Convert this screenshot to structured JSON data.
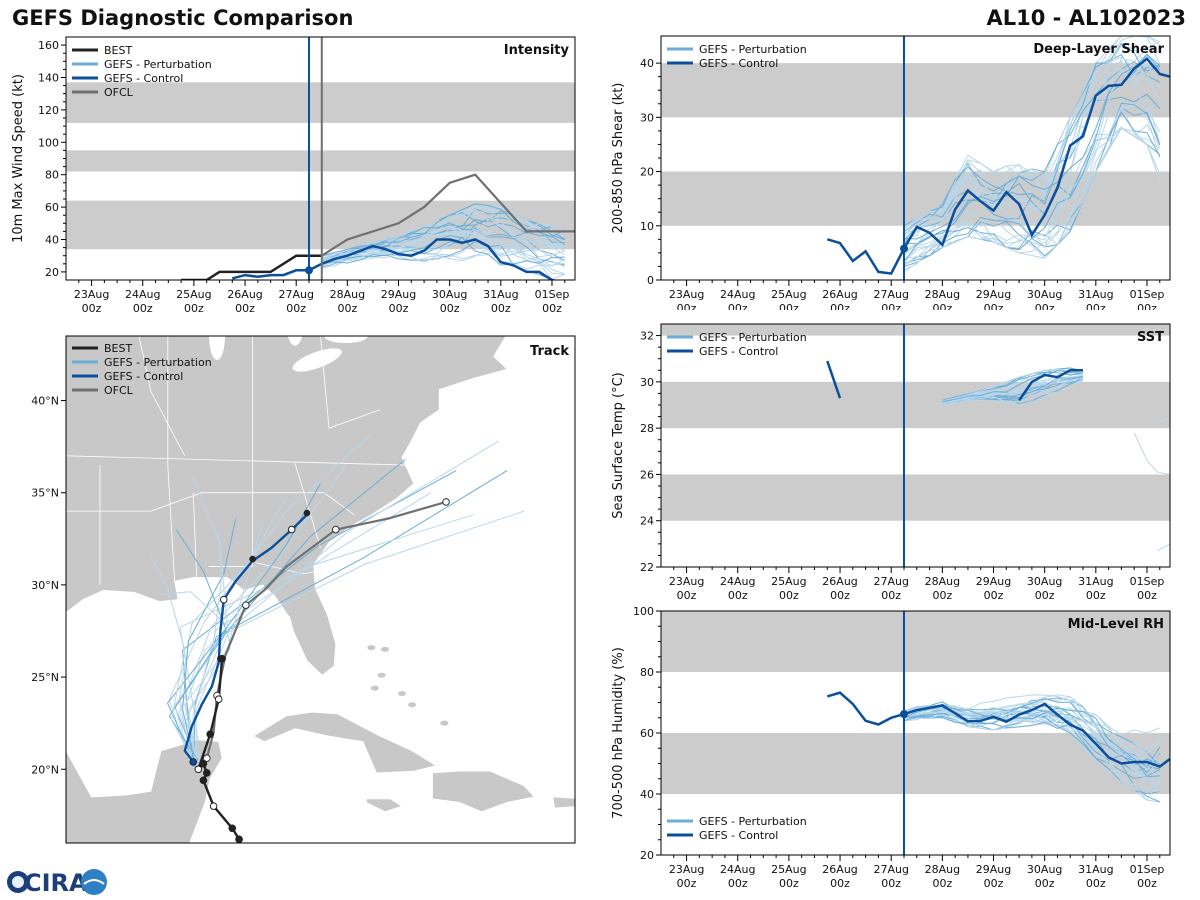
{
  "header": {
    "title": "GEFS Diagnostic Comparison",
    "storm": "AL10 - AL102023"
  },
  "logo_text": "CIRA",
  "colors": {
    "best": "#222222",
    "perturbation": "#6aaed6",
    "perturbation_faint": "#b9d7ec",
    "control": "#0b4f9c",
    "ofcl": "#707070",
    "band": "#cccccc",
    "land": "#c8c8c8",
    "init_line": "#0b4f9c"
  },
  "time_axis": {
    "days": [
      0,
      1,
      2,
      3,
      4,
      5,
      6,
      7,
      8,
      9
    ],
    "labels": [
      "23Aug",
      "24Aug",
      "25Aug",
      "26Aug",
      "27Aug",
      "28Aug",
      "29Aug",
      "30Aug",
      "31Aug",
      "01Sep"
    ],
    "sublabel": "00z",
    "xlim": [
      -0.5,
      9.45
    ],
    "init_day": 4.25,
    "ofcl_init_day": 4.5
  },
  "chart_data": [
    {
      "id": "intensity",
      "type": "line",
      "title": "Intensity",
      "ylabel": "10m Max Wind Speed (kt)",
      "ylim": [
        15,
        165
      ],
      "yticks": [
        20,
        40,
        60,
        80,
        100,
        120,
        140,
        160
      ],
      "bands": [
        [
          34,
          64
        ],
        [
          82,
          95
        ],
        [
          112,
          137
        ]
      ],
      "legend": [
        "BEST",
        "GEFS - Perturbation",
        "GEFS - Control",
        "OFCL"
      ],
      "best": {
        "x": [
          1.75,
          2.25,
          2.5,
          3.0,
          3.5,
          4.0,
          4.25,
          4.5
        ],
        "y": [
          15,
          15,
          20,
          20,
          20,
          30,
          30,
          30
        ]
      },
      "control": {
        "x": [
          2.75,
          3.0,
          3.25,
          3.5,
          3.75,
          4.0,
          4.25,
          4.5,
          4.75,
          5.0,
          5.25,
          5.5,
          5.75,
          6.0,
          6.25,
          6.5,
          6.75,
          7.0,
          7.25,
          7.5,
          7.75,
          8.0,
          8.25,
          8.5,
          8.75,
          9.0,
          9.25,
          9.45
        ],
        "y": [
          16,
          18,
          17,
          18,
          18,
          21,
          21,
          25,
          28,
          30,
          33,
          36,
          34,
          31,
          30,
          33,
          40,
          40,
          38,
          40,
          36,
          26,
          24,
          20,
          20,
          15,
          13,
          12
        ]
      },
      "ofcl": {
        "x": [
          4.5,
          5.0,
          6.0,
          6.5,
          7.0,
          7.5,
          8.5,
          9.5
        ],
        "y": [
          30,
          40,
          50,
          60,
          75,
          80,
          45,
          45
        ]
      },
      "perturbation_envelope": {
        "x": [
          4.5,
          5.0,
          5.5,
          6.0,
          6.5,
          7.0,
          7.5,
          8.0,
          8.5,
          9.0,
          9.45
        ],
        "low": [
          22,
          25,
          28,
          28,
          26,
          28,
          26,
          22,
          18,
          15,
          15
        ],
        "high": [
          30,
          34,
          38,
          42,
          48,
          55,
          62,
          60,
          52,
          48,
          45
        ]
      },
      "init_marker": {
        "x": 4.25,
        "y": 21
      }
    },
    {
      "id": "shear",
      "type": "line",
      "title": "Deep-Layer Shear",
      "ylabel": "200-850 hPa Shear (kt)",
      "ylim": [
        0,
        45
      ],
      "yticks": [
        0,
        10,
        20,
        30,
        40
      ],
      "bands": [
        [
          10,
          20
        ],
        [
          30,
          40
        ]
      ],
      "legend": [
        "GEFS - Perturbation",
        "GEFS - Control"
      ],
      "control": {
        "x": [
          2.75,
          3.0,
          3.25,
          3.5,
          3.75,
          4.0,
          4.25,
          4.5,
          4.75,
          5.0,
          5.25,
          5.5,
          5.75,
          6.0,
          6.25,
          6.5,
          6.75,
          7.0,
          7.25,
          7.5,
          7.75,
          8.0,
          8.25,
          8.5,
          8.75,
          9.0,
          9.25,
          9.45
        ],
        "y": [
          7.5,
          6.8,
          3.5,
          5.3,
          1.5,
          1.2,
          5.8,
          9.8,
          8.7,
          6.5,
          13,
          16.5,
          14.5,
          12.8,
          16.2,
          14,
          8.3,
          12,
          17,
          24.8,
          26.5,
          34,
          35.8,
          36,
          39,
          40.8,
          38,
          37.5
        ]
      },
      "perturbation_envelope": {
        "x": [
          4.25,
          5.0,
          5.5,
          6.0,
          6.5,
          7.0,
          7.5,
          8.0,
          8.5,
          9.0,
          9.45
        ],
        "low": [
          1.5,
          6,
          8,
          7,
          5,
          4,
          9,
          20,
          28,
          25,
          13
        ],
        "high": [
          10,
          14,
          23,
          20,
          22,
          20,
          30,
          40,
          45,
          45,
          44
        ]
      },
      "init_marker": {
        "x": 4.25,
        "y": 5.8
      }
    },
    {
      "id": "sst",
      "type": "line",
      "title": "SST",
      "ylabel": "Sea Surface Temp (°C)",
      "ylim": [
        22,
        32.5
      ],
      "yticks": [
        22,
        24,
        26,
        28,
        30,
        32
      ],
      "bands": [
        [
          24,
          26
        ],
        [
          28,
          30
        ],
        [
          32,
          32.5
        ]
      ],
      "legend": [
        "GEFS - Perturbation",
        "GEFS - Control"
      ],
      "control_segments": [
        {
          "x": [
            2.75,
            3.0
          ],
          "y": [
            30.9,
            29.3
          ]
        },
        {
          "x": [
            6.5,
            6.75,
            7.0,
            7.25,
            7.5,
            7.75
          ],
          "y": [
            29.2,
            30.0,
            30.3,
            30.2,
            30.5,
            30.5
          ]
        }
      ],
      "perturbation_envelope": {
        "x": [
          5.0,
          5.5,
          6.0,
          6.5,
          7.0,
          7.5,
          7.9
        ],
        "low": [
          29.0,
          29.2,
          29.2,
          29.0,
          29.3,
          29.8,
          30.2
        ],
        "high": [
          29.2,
          29.5,
          29.8,
          30.2,
          30.5,
          30.6,
          30.4
        ]
      },
      "late_fragments": [
        {
          "x": [
            8.75,
            9.0,
            9.2,
            9.45
          ],
          "y": [
            27.8,
            26.6,
            26.1,
            26.0
          ]
        },
        {
          "x": [
            9.0,
            9.2,
            9.45
          ],
          "y": [
            28.6,
            28.2,
            28.5
          ]
        },
        {
          "x": [
            9.2,
            9.45
          ],
          "y": [
            22.7,
            23.0
          ]
        }
      ]
    },
    {
      "id": "rh",
      "type": "line",
      "title": "Mid-Level RH",
      "ylabel": "700-500 hPa Humidity (%)",
      "ylim": [
        20,
        100
      ],
      "yticks": [
        20,
        40,
        60,
        80,
        100
      ],
      "bands": [
        [
          40,
          60
        ],
        [
          80,
          100
        ]
      ],
      "legend": [
        "GEFS - Perturbation",
        "GEFS - Control"
      ],
      "control": {
        "x": [
          2.75,
          3.0,
          3.25,
          3.5,
          3.75,
          4.0,
          4.25,
          4.5,
          4.75,
          5.0,
          5.25,
          5.5,
          5.75,
          6.0,
          6.25,
          6.5,
          6.75,
          7.0,
          7.25,
          7.5,
          7.75,
          8.0,
          8.25,
          8.5,
          8.75,
          9.0,
          9.25,
          9.45
        ],
        "y": [
          72,
          73.2,
          69.5,
          64,
          62.8,
          65,
          66.2,
          67.5,
          68.3,
          69,
          66.5,
          63.8,
          64,
          65.3,
          63.7,
          66,
          67.5,
          69.5,
          66,
          62.8,
          60.8,
          56.5,
          52,
          50,
          50.5,
          50.5,
          49,
          51.5
        ]
      },
      "perturbation_envelope": {
        "x": [
          4.25,
          5.0,
          5.5,
          6.0,
          6.5,
          7.0,
          7.5,
          8.0,
          8.5,
          9.0,
          9.45
        ],
        "low": [
          64,
          65,
          62,
          61,
          62,
          63,
          60,
          50,
          44,
          38,
          37
        ],
        "high": [
          68,
          71,
          70,
          71,
          72,
          73,
          74,
          70,
          62,
          60,
          63
        ]
      },
      "init_marker": {
        "x": 4.25,
        "y": 66.2
      }
    },
    {
      "id": "track",
      "type": "scatter",
      "title": "Track",
      "lat_range": [
        16.0,
        43.5
      ],
      "lon_range": [
        -96.0,
        -66.0
      ],
      "lat_ticks": [
        20,
        25,
        30,
        35,
        40
      ],
      "lat_labels": [
        "20°N",
        "25°N",
        "30°N",
        "35°N",
        "40°N"
      ],
      "legend": [
        "BEST",
        "GEFS - Perturbation",
        "GEFS - Control",
        "OFCL"
      ],
      "best": {
        "lon": [
          -85.8,
          -86.2,
          -87.3,
          -87.9,
          -87.7,
          -87.9,
          -88.2,
          -87.5,
          -87.0,
          -86.8
        ],
        "lat": [
          16.2,
          16.8,
          18.0,
          19.4,
          19.8,
          20.3,
          20.0,
          21.9,
          23.8,
          26.0
        ],
        "open": [
          false,
          false,
          true,
          false,
          false,
          false,
          true,
          false,
          true,
          false
        ]
      },
      "control": {
        "lon": [
          -88.5,
          -89.0,
          -88.6,
          -88.0,
          -87.4,
          -87.0,
          -86.9,
          -86.7,
          -86.0,
          -85.0,
          -83.9,
          -82.7,
          -81.8
        ],
        "lat": [
          20.4,
          21.0,
          22.3,
          23.5,
          24.5,
          25.8,
          27.5,
          29.2,
          30.2,
          31.3,
          32.0,
          33.0,
          33.8
        ],
        "points": [
          [
            -88.5,
            20.4
          ],
          [
            -86.7,
            29.2
          ],
          [
            -82.7,
            33.0
          ]
        ],
        "filled_points": [
          [
            -85.0,
            31.4
          ],
          [
            -81.8,
            33.9
          ],
          [
            -86.9,
            26.0
          ]
        ]
      },
      "ofcl": {
        "lon": [
          -88.2,
          -87.7,
          -87.3,
          -87.1,
          -86.6,
          -85.4,
          -84.2,
          -83.0,
          -80.1,
          -77.0,
          -73.6
        ],
        "lat": [
          20.0,
          20.6,
          22.0,
          24.0,
          26.2,
          28.9,
          29.8,
          31.0,
          33.0,
          33.6,
          34.5
        ],
        "points": [
          [
            -87.7,
            20.6
          ],
          [
            -87.1,
            24.0
          ],
          [
            -85.4,
            28.9
          ],
          [
            -80.1,
            33.0
          ],
          [
            -73.6,
            34.5
          ]
        ]
      },
      "perturbation_endpoints": [
        [
          -73.0,
          36.2
        ],
        [
          -70.5,
          37.8
        ],
        [
          -69.0,
          34.0
        ],
        [
          -70.0,
          36.2
        ],
        [
          -72.0,
          33.8
        ],
        [
          -74.5,
          35.0
        ],
        [
          -76.0,
          36.8
        ],
        [
          -78.0,
          38.2
        ],
        [
          -79.5,
          36.5
        ],
        [
          -81.0,
          35.5
        ],
        [
          -83.0,
          34.8
        ],
        [
          -84.5,
          33.2
        ],
        [
          -86.0,
          33.6
        ],
        [
          -87.0,
          32.8
        ],
        [
          -88.5,
          35.8
        ],
        [
          -89.5,
          33.0
        ],
        [
          -90.5,
          29.5
        ],
        [
          -91.0,
          31.5
        ]
      ]
    }
  ]
}
